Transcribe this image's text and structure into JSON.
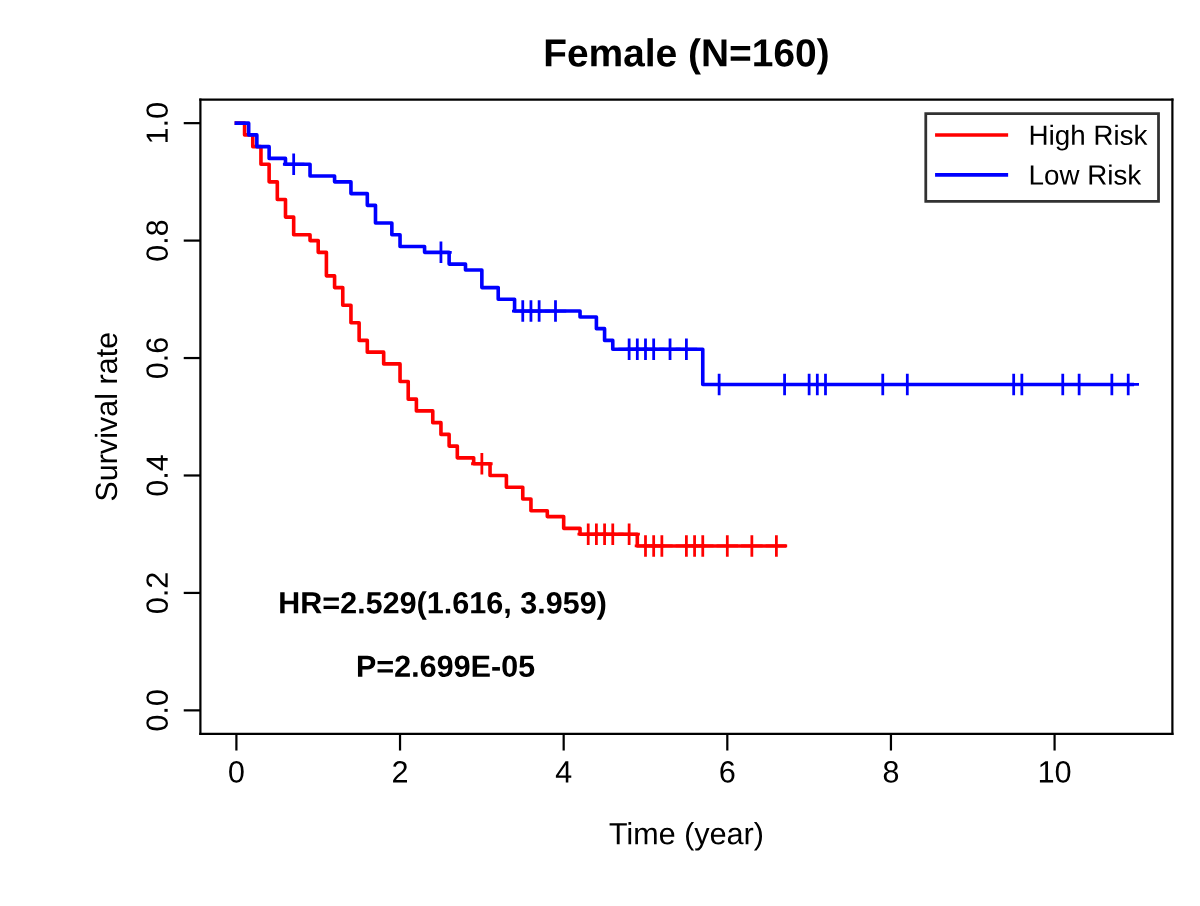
{
  "chart_data": {
    "type": "step",
    "title": "Female (N=160)",
    "xlabel": "Time (year)",
    "ylabel": "Survival rate",
    "xlim": [
      -0.44,
      11.44
    ],
    "ylim": [
      -0.04,
      1.04
    ],
    "xticks": [
      0,
      2,
      4,
      6,
      8,
      10
    ],
    "yticks": [
      {
        "value": 0,
        "label": "0.0"
      },
      0.2,
      0.4,
      0.6,
      0.8,
      {
        "value": 1,
        "label": "1.0"
      }
    ],
    "grid": false,
    "legend": "top right",
    "line_style": "solid",
    "annotations": [
      "HR=2.529(1.616, 3.959)",
      "P=2.699E-05"
    ],
    "series": [
      {
        "name": "High Risk",
        "color": "#ff0000",
        "x": [
          0,
          0.1,
          0.2,
          0.3,
          0.4,
          0.5,
          0.6,
          0.7,
          0.9,
          1.0,
          1.1,
          1.2,
          1.3,
          1.4,
          1.5,
          1.6,
          1.8,
          2.0,
          2.1,
          2.2,
          2.4,
          2.5,
          2.6,
          2.7,
          2.9,
          3.1,
          3.3,
          3.5,
          3.6,
          3.8,
          4.0,
          4.2,
          4.9,
          6.7
        ],
        "values": [
          1.0,
          0.98,
          0.96,
          0.93,
          0.9,
          0.87,
          0.84,
          0.81,
          0.8,
          0.78,
          0.74,
          0.72,
          0.69,
          0.66,
          0.63,
          0.61,
          0.59,
          0.56,
          0.53,
          0.51,
          0.49,
          0.47,
          0.45,
          0.43,
          0.42,
          0.4,
          0.38,
          0.36,
          0.34,
          0.33,
          0.31,
          0.3,
          0.28,
          0.28
        ]
      },
      {
        "name": "Low Risk",
        "color": "#0000ff",
        "x": [
          0,
          0.15,
          0.25,
          0.4,
          0.6,
          0.9,
          1.2,
          1.4,
          1.6,
          1.7,
          1.9,
          2.0,
          2.3,
          2.6,
          2.8,
          3.0,
          3.2,
          3.4,
          4.2,
          4.4,
          4.5,
          4.6,
          5.7,
          10.95
        ],
        "values": [
          1.0,
          0.98,
          0.96,
          0.94,
          0.93,
          0.91,
          0.9,
          0.88,
          0.86,
          0.83,
          0.81,
          0.79,
          0.78,
          0.76,
          0.75,
          0.72,
          0.7,
          0.68,
          0.67,
          0.65,
          0.63,
          0.615,
          0.555,
          0.555
        ]
      },
      {
        "type": "scatter",
        "marker": "cross",
        "color": "#ff0000",
        "x": [
          3.0,
          4.3,
          4.4,
          4.5,
          4.6,
          4.8,
          5.0,
          5.1,
          5.2,
          5.5,
          5.6,
          5.7,
          6.0,
          6.3,
          6.6
        ],
        "values": [
          0.42,
          0.3,
          0.3,
          0.3,
          0.3,
          0.3,
          0.28,
          0.28,
          0.28,
          0.28,
          0.28,
          0.28,
          0.28,
          0.28,
          0.28
        ]
      },
      {
        "type": "scatter",
        "marker": "cross",
        "color": "#0000ff",
        "x": [
          0.7,
          2.5,
          3.5,
          3.6,
          3.7,
          3.9,
          4.8,
          4.9,
          5.0,
          5.1,
          5.3,
          5.5,
          5.9,
          6.7,
          7.0,
          7.1,
          7.2,
          7.9,
          8.2,
          9.5,
          9.6,
          10.1,
          10.3,
          10.7,
          10.9
        ],
        "values": [
          0.93,
          0.78,
          0.68,
          0.68,
          0.68,
          0.68,
          0.615,
          0.615,
          0.615,
          0.615,
          0.615,
          0.615,
          0.555,
          0.555,
          0.555,
          0.555,
          0.555,
          0.555,
          0.555,
          0.555,
          0.555,
          0.555,
          0.555,
          0.555,
          0.555
        ]
      }
    ]
  }
}
